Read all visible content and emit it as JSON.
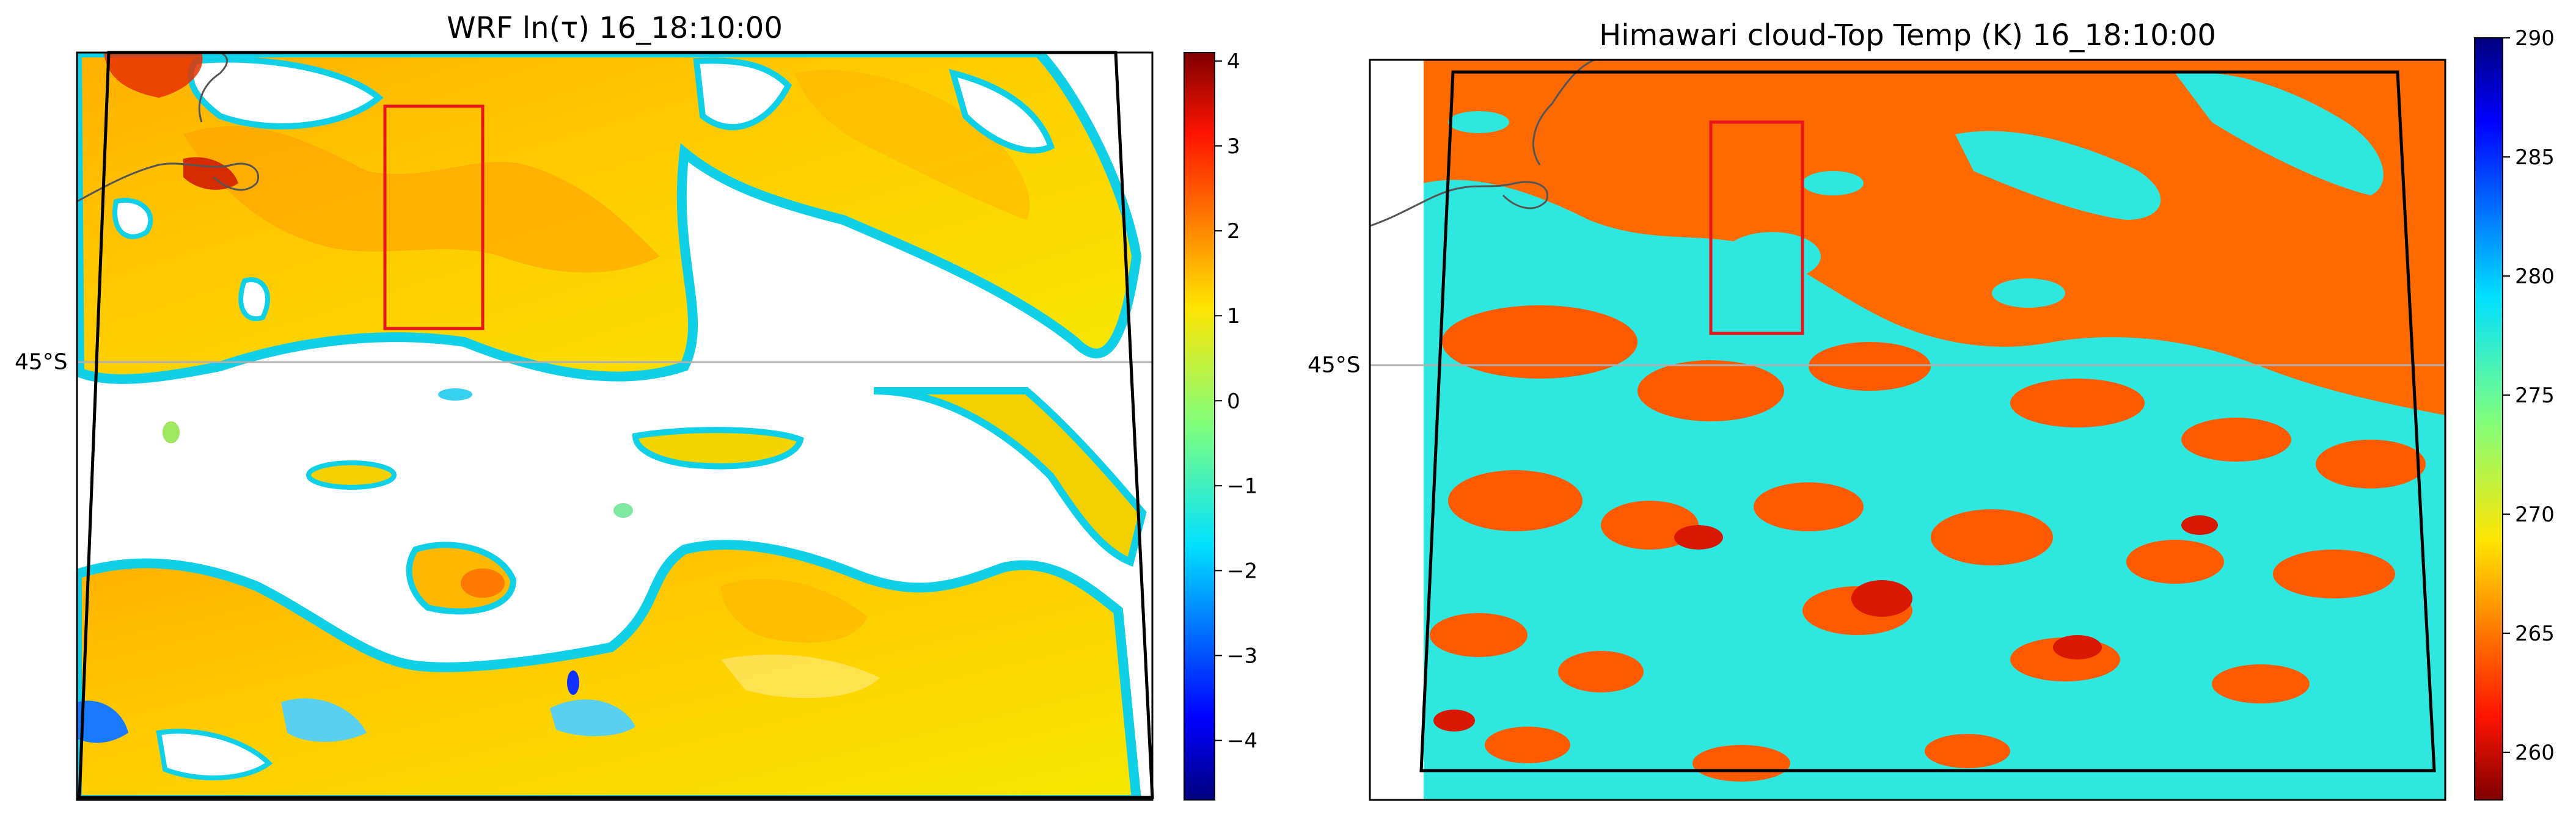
{
  "panels": [
    {
      "id": "wrf",
      "title": "WRF ln(τ) 16_18:10:00",
      "lat_label": "45°S",
      "colorbar": {
        "min": -4.7,
        "max": 4.1,
        "ticks": [
          "−4",
          "−3",
          "−2",
          "−1",
          "0",
          "1",
          "2",
          "3",
          "4"
        ],
        "tick_values": [
          -4,
          -3,
          -2,
          -1,
          0,
          1,
          2,
          3,
          4
        ]
      },
      "colormap": "jet"
    },
    {
      "id": "himawari",
      "title": "Himawari cloud-Top Temp (K) 16_18:10:00",
      "lat_label": "45°S",
      "colorbar": {
        "min": 258,
        "max": 290,
        "ticks": [
          "260",
          "265",
          "270",
          "275",
          "280",
          "285",
          "290"
        ],
        "tick_values": [
          260,
          265,
          270,
          275,
          280,
          285,
          290
        ]
      },
      "colormap": "jet_r"
    }
  ],
  "colors": {
    "domain_box": "#000000",
    "highlight_box": "#e8161c",
    "coastline": "#555555",
    "gridline": "#b0b0b0"
  }
}
